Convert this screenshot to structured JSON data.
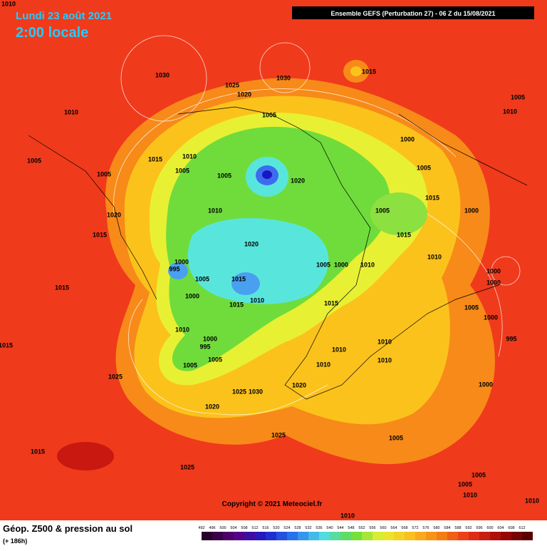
{
  "header": {
    "date": "Lundi 23 août 2021",
    "time": "2:00 locale",
    "run": "Ensemble GEFS  (Perturbation 27)  -  06 Z du 15/08/2021"
  },
  "copyright": "Copyright © 2021 Meteociel.fr",
  "footer": {
    "title": "Géop. Z500 & pression au sol",
    "lead": "(+ 186h)"
  },
  "colorbar": {
    "labels": [
      492,
      496,
      500,
      504,
      508,
      512,
      516,
      520,
      524,
      528,
      532,
      536,
      540,
      544,
      548,
      552,
      556,
      560,
      564,
      568,
      572,
      576,
      580,
      584,
      588,
      592,
      596,
      600,
      604,
      608,
      612
    ]
  },
  "pressure_labels": [
    1010,
    1030,
    1025,
    1020,
    1030,
    1015,
    1005,
    1005,
    1010,
    1005,
    1010,
    1015,
    1005,
    1005,
    1005,
    1020,
    1000,
    1005,
    1020,
    1015,
    1010,
    1005,
    1015,
    1000,
    1015,
    1020,
    1010,
    1000,
    995,
    1005,
    1015,
    1005,
    1000,
    1010,
    1000,
    1000,
    1015,
    1000,
    1015,
    1010,
    1015,
    1005,
    1000,
    1010,
    1000,
    995,
    995,
    1010,
    1010,
    1015,
    1005,
    1005,
    1010,
    1010,
    1025,
    1000,
    1020,
    1025,
    1030,
    1020,
    1025,
    1005,
    1015,
    1025,
    1005,
    1010,
    1010,
    1005,
    1010,
    1010
  ]
}
